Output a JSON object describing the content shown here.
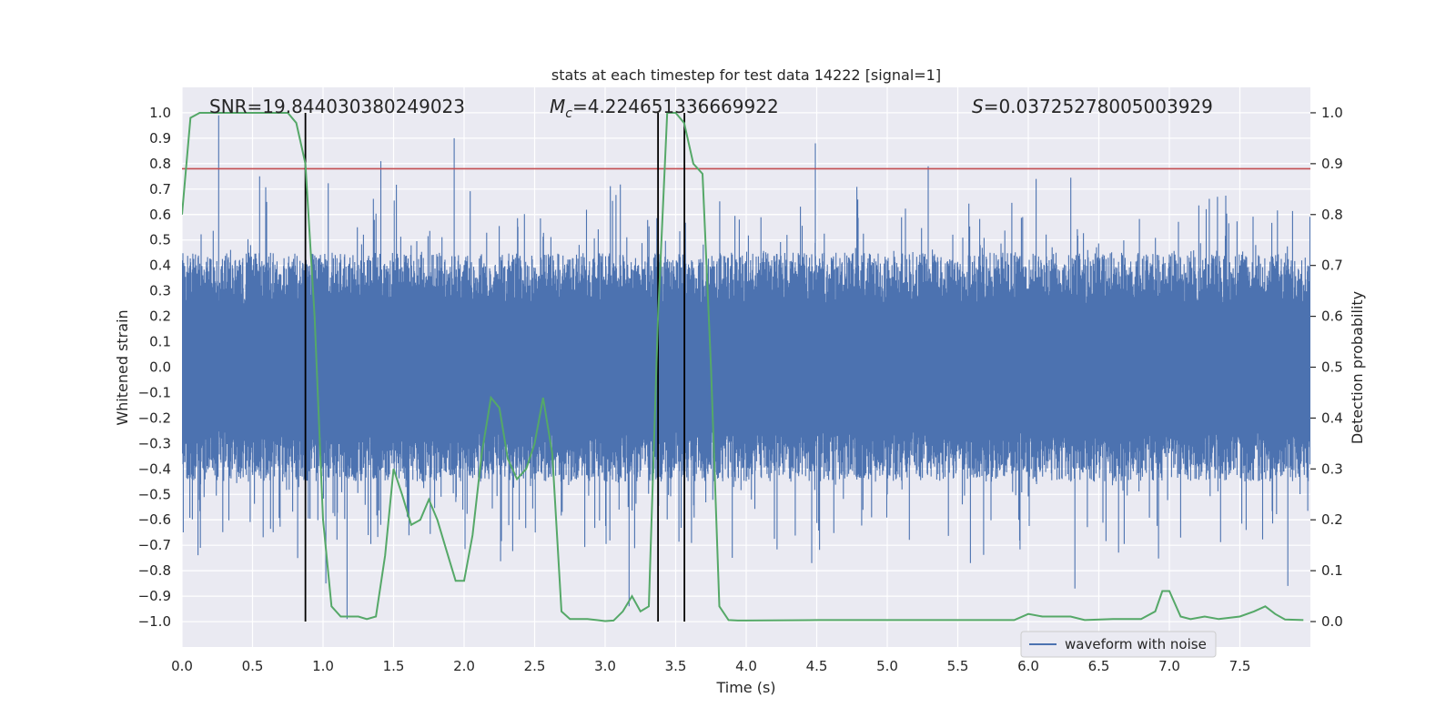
{
  "chart_data": {
    "type": "line",
    "title": "stats at each timestep for test data 14222 [signal=1]",
    "xlabel": "Time (s)",
    "ylabel_left": "Whitened strain",
    "ylabel_right": "Detection probability",
    "xlim": [
      0,
      8
    ],
    "ylim_left": [
      -1.1,
      1.1
    ],
    "ylim_right": [
      -0.05,
      1.05
    ],
    "xticks": [
      0.0,
      0.5,
      1.0,
      1.5,
      2.0,
      2.5,
      3.0,
      3.5,
      4.0,
      4.5,
      5.0,
      5.5,
      6.0,
      6.5,
      7.0,
      7.5
    ],
    "xtick_labels": [
      "0.0",
      "0.5",
      "1.0",
      "1.5",
      "2.0",
      "2.5",
      "3.0",
      "3.5",
      "4.0",
      "4.5",
      "5.0",
      "5.5",
      "6.0",
      "6.5",
      "7.0",
      "7.5"
    ],
    "yticks_left": [
      1.0,
      0.9,
      0.8,
      0.7,
      0.6,
      0.5,
      0.4,
      0.3,
      0.2,
      0.1,
      0.0,
      -0.1,
      -0.2,
      -0.3,
      -0.4,
      -0.5,
      -0.6,
      -0.7,
      -0.8,
      -0.9,
      -1.0
    ],
    "ytick_labels_left": [
      "1.0",
      "0.9",
      "0.8",
      "0.7",
      "0.6",
      "0.5",
      "0.4",
      "0.3",
      "0.2",
      "0.1",
      "0.0",
      "−0.1",
      "−0.2",
      "−0.3",
      "−0.4",
      "−0.5",
      "−0.6",
      "−0.7",
      "−0.8",
      "−0.9",
      "−1.0"
    ],
    "yticks_right": [
      1.0,
      0.9,
      0.8,
      0.7,
      0.6,
      0.5,
      0.4,
      0.3,
      0.2,
      0.1,
      0.0
    ],
    "ytick_labels_right": [
      "1.0",
      "0.9",
      "0.8",
      "0.7",
      "0.6",
      "0.5",
      "0.4",
      "0.3",
      "0.2",
      "0.1",
      "0.0"
    ],
    "annotations": {
      "snr": "SNR=19.844030380249023",
      "mc_symbol": "M",
      "mc_subscript": "c",
      "mc_value": "=4.224651336669922",
      "s_symbol": "S",
      "s_value": "=0.03725278005003929"
    },
    "legend": {
      "label": "waveform with noise",
      "position": "lower-right"
    },
    "threshold": {
      "value": 0.78,
      "axis": "left",
      "color": "#c44e52"
    },
    "vertical_markers": [
      0.875,
      3.375,
      3.562
    ],
    "waveform": {
      "name": "waveform with noise",
      "color": "#4c72b0",
      "duration": 8,
      "core_amplitude": 0.22,
      "spike_peaks": [
        {
          "t": 0.26,
          "v": 0.99
        },
        {
          "t": 1.93,
          "v": 0.9
        },
        {
          "t": 4.49,
          "v": 0.88
        },
        {
          "t": 1.41,
          "v": 0.81
        },
        {
          "t": 5.29,
          "v": 0.79
        },
        {
          "t": 0.55,
          "v": 0.75
        },
        {
          "t": 1.17,
          "v": -0.99
        },
        {
          "t": 3.17,
          "v": -0.94
        },
        {
          "t": 6.33,
          "v": -0.87
        },
        {
          "t": 7.84,
          "v": -0.86
        },
        {
          "t": 1.02,
          "v": -0.85
        },
        {
          "t": 5.59,
          "v": -0.77
        },
        {
          "t": 0.82,
          "v": -0.75
        },
        {
          "t": 0.13,
          "v": -0.71
        }
      ],
      "color_hint": "blue"
    },
    "series": [
      {
        "name": "Detection probability",
        "axis": "right",
        "color": "#55a868",
        "x": [
          0.0,
          0.06,
          0.125,
          0.19,
          0.25,
          0.31,
          0.375,
          0.44,
          0.5,
          0.56,
          0.625,
          0.69,
          0.75,
          0.81,
          0.875,
          0.94,
          1.0,
          1.06,
          1.125,
          1.19,
          1.25,
          1.31,
          1.375,
          1.44,
          1.5,
          1.56,
          1.625,
          1.69,
          1.75,
          1.81,
          1.875,
          1.94,
          2.0,
          2.06,
          2.125,
          2.19,
          2.25,
          2.31,
          2.375,
          2.44,
          2.5,
          2.56,
          2.625,
          2.69,
          2.75,
          2.81,
          2.875,
          2.94,
          3.0,
          3.06,
          3.125,
          3.19,
          3.25,
          3.31,
          3.375,
          3.44,
          3.5,
          3.56,
          3.625,
          3.69,
          3.75,
          3.81,
          3.875,
          3.94,
          4.0,
          4.5,
          5.0,
          5.5,
          5.75,
          5.9,
          6.0,
          6.1,
          6.3,
          6.4,
          6.6,
          6.8,
          6.9,
          6.95,
          7.0,
          7.08,
          7.15,
          7.25,
          7.35,
          7.5,
          7.6,
          7.68,
          7.75,
          7.82,
          7.95
        ],
        "values": [
          0.8,
          0.99,
          1.0,
          1.0,
          1.0,
          1.0,
          1.0,
          1.0,
          1.0,
          1.0,
          1.0,
          1.0,
          1.0,
          0.98,
          0.9,
          0.6,
          0.2,
          0.03,
          0.01,
          0.01,
          0.01,
          0.005,
          0.01,
          0.13,
          0.3,
          0.25,
          0.19,
          0.2,
          0.24,
          0.2,
          0.14,
          0.08,
          0.08,
          0.17,
          0.33,
          0.44,
          0.42,
          0.32,
          0.28,
          0.3,
          0.35,
          0.44,
          0.33,
          0.02,
          0.005,
          0.005,
          0.005,
          0.003,
          0.001,
          0.002,
          0.02,
          0.05,
          0.02,
          0.03,
          0.6,
          1.0,
          1.0,
          0.98,
          0.9,
          0.88,
          0.5,
          0.03,
          0.003,
          0.002,
          0.002,
          0.003,
          0.003,
          0.003,
          0.003,
          0.003,
          0.015,
          0.01,
          0.01,
          0.003,
          0.005,
          0.005,
          0.02,
          0.06,
          0.06,
          0.01,
          0.005,
          0.01,
          0.005,
          0.01,
          0.02,
          0.03,
          0.015,
          0.004,
          0.003
        ]
      }
    ]
  }
}
